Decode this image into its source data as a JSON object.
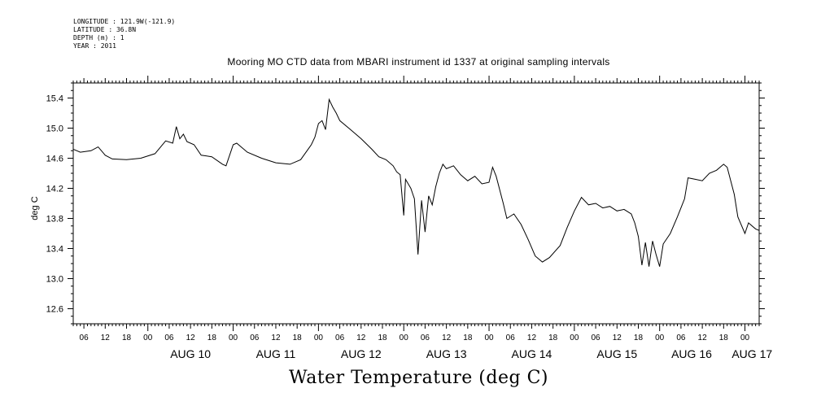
{
  "meta": {
    "longitude": "LONGITUDE : 121.9W(-121.9)",
    "latitude": "LATITUDE : 36.8N",
    "depth": "DEPTH (m) : 1",
    "year": "YEAR : 2011"
  },
  "chart_data": {
    "type": "line",
    "title": "Mooring MO CTD data from MBARI instrument id 1337 at original sampling intervals",
    "xlabel": "Water Temperature (deg C)",
    "ylabel": "deg C",
    "xlim": [
      "2011-08-09T03:00",
      "2011-08-17T04:00"
    ],
    "ylim": [
      12.4,
      15.6
    ],
    "yticks": [
      12.6,
      13.0,
      13.4,
      13.8,
      14.2,
      14.6,
      15.0,
      15.4
    ],
    "yticklabels": [
      "12.6",
      "13.0",
      "13.4",
      "13.8",
      "14.2",
      "14.6",
      "15.0",
      "15.4"
    ],
    "hour_labels": [
      "06",
      "12",
      "18",
      "00"
    ],
    "day_labels": [
      {
        "label": "AUG 10",
        "date": "2011-08-10"
      },
      {
        "label": "AUG 11",
        "date": "2011-08-11"
      },
      {
        "label": "AUG 12",
        "date": "2011-08-12"
      },
      {
        "label": "AUG 13",
        "date": "2011-08-13"
      },
      {
        "label": "AUG 14",
        "date": "2011-08-14"
      },
      {
        "label": "AUG 15",
        "date": "2011-08-15"
      },
      {
        "label": "AUG 16",
        "date": "2011-08-16"
      },
      {
        "label": "AUG 17",
        "date": "2011-08-17"
      }
    ],
    "grid": false,
    "series": [
      {
        "line_color": "#000000",
        "points": [
          [
            "2011-08-09T03:00",
            14.72
          ],
          [
            "2011-08-09T05:00",
            14.68
          ],
          [
            "2011-08-09T08:00",
            14.7
          ],
          [
            "2011-08-09T10:00",
            14.75
          ],
          [
            "2011-08-09T12:00",
            14.64
          ],
          [
            "2011-08-09T14:00",
            14.59
          ],
          [
            "2011-08-09T18:00",
            14.58
          ],
          [
            "2011-08-09T22:00",
            14.6
          ],
          [
            "2011-08-10T02:00",
            14.66
          ],
          [
            "2011-08-10T05:00",
            14.83
          ],
          [
            "2011-08-10T07:00",
            14.8
          ],
          [
            "2011-08-10T08:00",
            15.02
          ],
          [
            "2011-08-10T09:00",
            14.86
          ],
          [
            "2011-08-10T10:00",
            14.92
          ],
          [
            "2011-08-10T11:00",
            14.82
          ],
          [
            "2011-08-10T13:00",
            14.78
          ],
          [
            "2011-08-10T15:00",
            14.64
          ],
          [
            "2011-08-10T18:00",
            14.62
          ],
          [
            "2011-08-10T21:00",
            14.52
          ],
          [
            "2011-08-10T22:00",
            14.5
          ],
          [
            "2011-08-11T00:00",
            14.78
          ],
          [
            "2011-08-11T01:00",
            14.8
          ],
          [
            "2011-08-11T04:00",
            14.68
          ],
          [
            "2011-08-11T08:00",
            14.6
          ],
          [
            "2011-08-11T12:00",
            14.54
          ],
          [
            "2011-08-11T16:00",
            14.52
          ],
          [
            "2011-08-11T19:00",
            14.58
          ],
          [
            "2011-08-11T22:00",
            14.78
          ],
          [
            "2011-08-11T23:00",
            14.88
          ],
          [
            "2011-08-12T00:00",
            15.06
          ],
          [
            "2011-08-12T01:00",
            15.1
          ],
          [
            "2011-08-12T02:00",
            14.98
          ],
          [
            "2011-08-12T03:00",
            15.38
          ],
          [
            "2011-08-12T04:00",
            15.28
          ],
          [
            "2011-08-12T05:00",
            15.2
          ],
          [
            "2011-08-12T06:00",
            15.1
          ],
          [
            "2011-08-12T09:00",
            14.98
          ],
          [
            "2011-08-12T12:00",
            14.86
          ],
          [
            "2011-08-12T15:00",
            14.72
          ],
          [
            "2011-08-12T17:00",
            14.62
          ],
          [
            "2011-08-12T19:00",
            14.58
          ],
          [
            "2011-08-12T21:00",
            14.5
          ],
          [
            "2011-08-12T22:00",
            14.42
          ],
          [
            "2011-08-12T23:00",
            14.38
          ],
          [
            "2011-08-13T00:00",
            13.84
          ],
          [
            "2011-08-13T00:30",
            14.32
          ],
          [
            "2011-08-13T02:00",
            14.2
          ],
          [
            "2011-08-13T03:00",
            14.06
          ],
          [
            "2011-08-13T04:00",
            13.32
          ],
          [
            "2011-08-13T05:00",
            14.04
          ],
          [
            "2011-08-13T06:00",
            13.62
          ],
          [
            "2011-08-13T07:00",
            14.1
          ],
          [
            "2011-08-13T08:00",
            13.98
          ],
          [
            "2011-08-13T09:00",
            14.22
          ],
          [
            "2011-08-13T10:00",
            14.4
          ],
          [
            "2011-08-13T11:00",
            14.52
          ],
          [
            "2011-08-13T12:00",
            14.46
          ],
          [
            "2011-08-13T14:00",
            14.5
          ],
          [
            "2011-08-13T16:00",
            14.38
          ],
          [
            "2011-08-13T18:00",
            14.3
          ],
          [
            "2011-08-13T20:00",
            14.36
          ],
          [
            "2011-08-13T22:00",
            14.26
          ],
          [
            "2011-08-14T00:00",
            14.28
          ],
          [
            "2011-08-14T01:00",
            14.48
          ],
          [
            "2011-08-14T02:00",
            14.36
          ],
          [
            "2011-08-14T04:00",
            14.0
          ],
          [
            "2011-08-14T05:00",
            13.8
          ],
          [
            "2011-08-14T07:00",
            13.86
          ],
          [
            "2011-08-14T09:00",
            13.72
          ],
          [
            "2011-08-14T11:00",
            13.52
          ],
          [
            "2011-08-14T13:00",
            13.3
          ],
          [
            "2011-08-14T15:00",
            13.22
          ],
          [
            "2011-08-14T17:00",
            13.28
          ],
          [
            "2011-08-14T20:00",
            13.44
          ],
          [
            "2011-08-14T22:00",
            13.68
          ],
          [
            "2011-08-15T00:00",
            13.9
          ],
          [
            "2011-08-15T02:00",
            14.08
          ],
          [
            "2011-08-15T04:00",
            13.98
          ],
          [
            "2011-08-15T06:00",
            14.0
          ],
          [
            "2011-08-15T08:00",
            13.94
          ],
          [
            "2011-08-15T10:00",
            13.96
          ],
          [
            "2011-08-15T12:00",
            13.9
          ],
          [
            "2011-08-15T14:00",
            13.92
          ],
          [
            "2011-08-15T16:00",
            13.86
          ],
          [
            "2011-08-15T17:00",
            13.74
          ],
          [
            "2011-08-15T18:00",
            13.56
          ],
          [
            "2011-08-15T19:00",
            13.18
          ],
          [
            "2011-08-15T20:00",
            13.48
          ],
          [
            "2011-08-15T21:00",
            13.16
          ],
          [
            "2011-08-15T22:00",
            13.5
          ],
          [
            "2011-08-15T23:00",
            13.32
          ],
          [
            "2011-08-16T00:00",
            13.16
          ],
          [
            "2011-08-16T01:00",
            13.46
          ],
          [
            "2011-08-16T03:00",
            13.6
          ],
          [
            "2011-08-16T05:00",
            13.82
          ],
          [
            "2011-08-16T07:00",
            14.06
          ],
          [
            "2011-08-16T08:00",
            14.34
          ],
          [
            "2011-08-16T10:00",
            14.32
          ],
          [
            "2011-08-16T12:00",
            14.3
          ],
          [
            "2011-08-16T14:00",
            14.4
          ],
          [
            "2011-08-16T16:00",
            14.44
          ],
          [
            "2011-08-16T18:00",
            14.52
          ],
          [
            "2011-08-16T19:00",
            14.48
          ],
          [
            "2011-08-16T21:00",
            14.12
          ],
          [
            "2011-08-16T22:00",
            13.82
          ],
          [
            "2011-08-17T00:00",
            13.6
          ],
          [
            "2011-08-17T01:00",
            13.74
          ],
          [
            "2011-08-17T03:00",
            13.66
          ],
          [
            "2011-08-17T04:00",
            13.64
          ]
        ]
      }
    ]
  }
}
